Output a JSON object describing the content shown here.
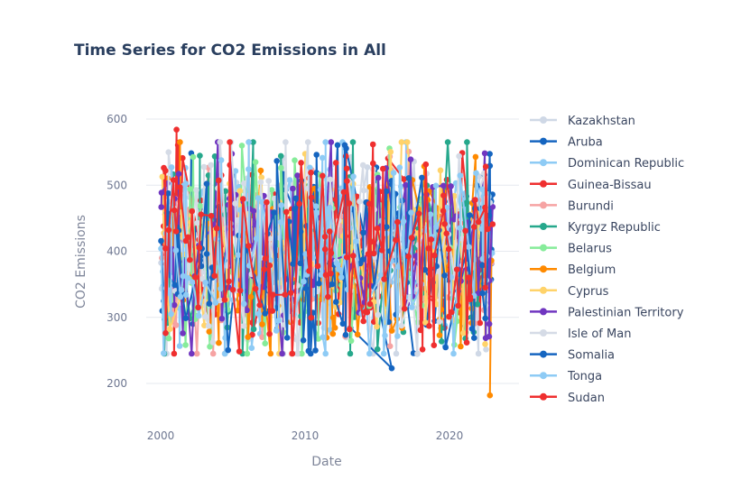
{
  "chart_data": {
    "type": "line",
    "title": "Time Series for CO2 Emissions in All",
    "xlabel": "Date",
    "ylabel": "CO2 Emissions",
    "xlim": [
      "2000",
      "2023"
    ],
    "ylim": [
      170,
      620
    ],
    "x_ticks": [
      "2000",
      "2010",
      "2020"
    ],
    "y_ticks": [
      "200",
      "300",
      "400",
      "500",
      "600"
    ],
    "grid": "horizontal",
    "legend_position": "right",
    "series": [
      {
        "name": "Kazakhstan",
        "color": "#cfd8e6"
      },
      {
        "name": "Aruba",
        "color": "#1565c0"
      },
      {
        "name": "Dominican Republic",
        "color": "#8ecbf5"
      },
      {
        "name": "Guinea-Bissau",
        "color": "#ef2f2f"
      },
      {
        "name": "Burundi",
        "color": "#f6a3a3"
      },
      {
        "name": "Kyrgyz Republic",
        "color": "#26a88c"
      },
      {
        "name": "Belarus",
        "color": "#86ec9a"
      },
      {
        "name": "Belgium",
        "color": "#ff8a00"
      },
      {
        "name": "Cyprus",
        "color": "#ffd36a"
      },
      {
        "name": "Palestinian Territory",
        "color": "#7036c0"
      },
      {
        "name": "Isle of Man",
        "color": "#d5dbe6"
      },
      {
        "name": "Somalia",
        "color": "#1565c0"
      },
      {
        "name": "Tonga",
        "color": "#8ecbf5"
      },
      {
        "name": "Sudan",
        "color": "#ef2f2f"
      }
    ]
  }
}
